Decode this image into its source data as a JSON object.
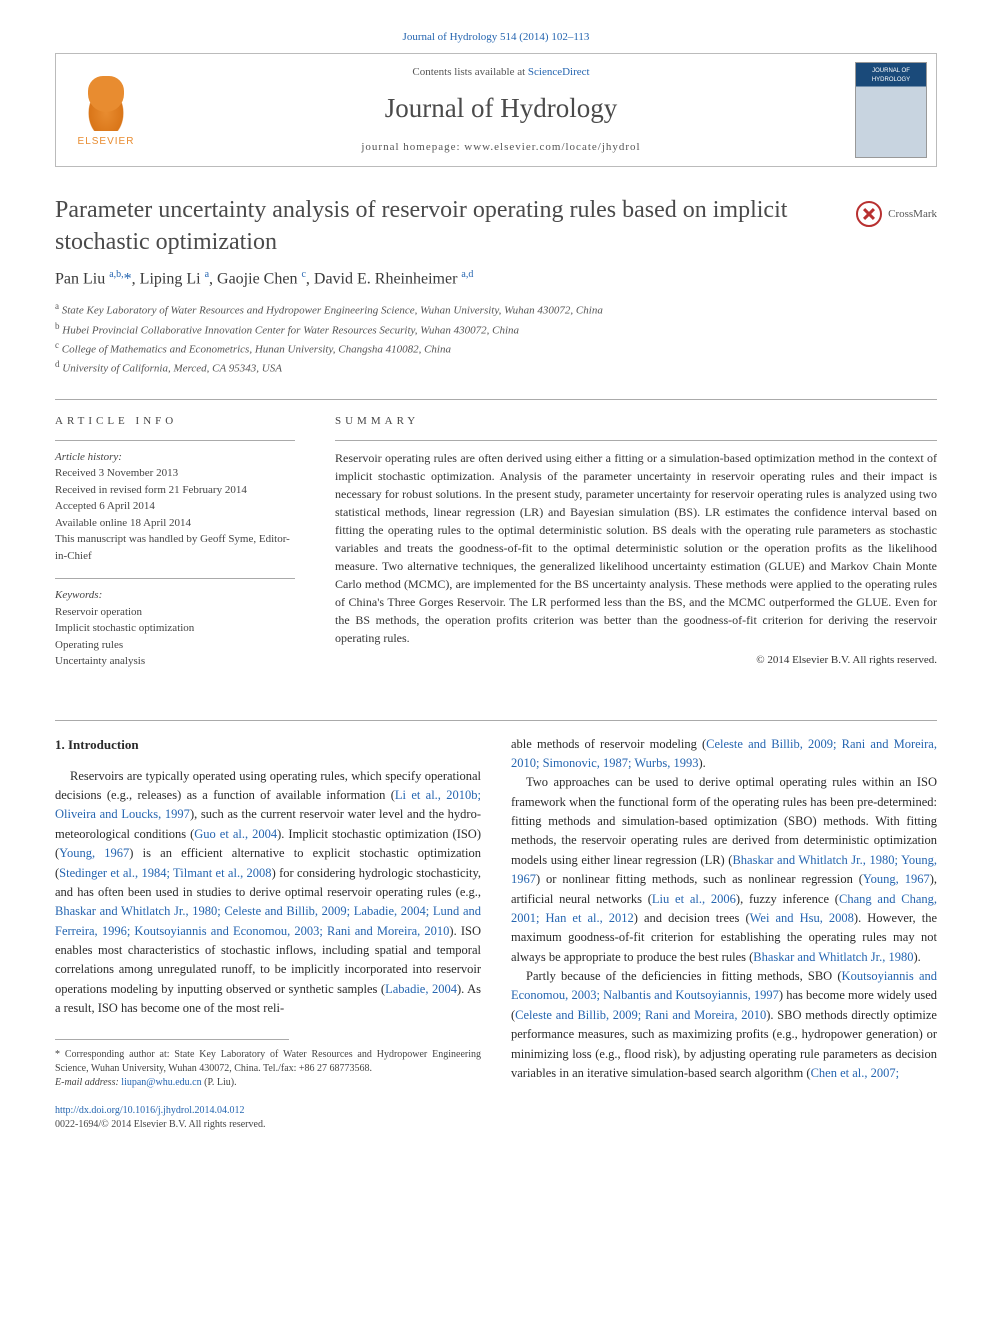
{
  "citation": "Journal of Hydrology 514 (2014) 102–113",
  "header": {
    "contents_prefix": "Contents lists available at ",
    "contents_link": "ScienceDirect",
    "journal": "Journal of Hydrology",
    "homepage_prefix": "journal homepage: ",
    "homepage": "www.elsevier.com/locate/jhydrol",
    "publisher": "ELSEVIER"
  },
  "title": "Parameter uncertainty analysis of reservoir operating rules based on implicit stochastic optimization",
  "crossmark": "CrossMark",
  "authors_html": "Pan Liu <sup>a,b,</sup><span class='star'>*</span>, Liping Li <sup>a</sup>, Gaojie Chen <sup>c</sup>, David E. Rheinheimer <sup>a,d</sup>",
  "affiliations": [
    "a State Key Laboratory of Water Resources and Hydropower Engineering Science, Wuhan University, Wuhan 430072, China",
    "b Hubei Provincial Collaborative Innovation Center for Water Resources Security, Wuhan 430072, China",
    "c College of Mathematics and Econometrics, Hunan University, Changsha 410082, China",
    "d University of California, Merced, CA 95343, USA"
  ],
  "article_info": {
    "label": "ARTICLE INFO",
    "history_title": "Article history:",
    "history": [
      "Received 3 November 2013",
      "Received in revised form 21 February 2014",
      "Accepted 6 April 2014",
      "Available online 18 April 2014",
      "This manuscript was handled by Geoff Syme, Editor-in-Chief"
    ],
    "keywords_title": "Keywords:",
    "keywords": [
      "Reservoir operation",
      "Implicit stochastic optimization",
      "Operating rules",
      "Uncertainty analysis"
    ]
  },
  "summary": {
    "label": "SUMMARY",
    "text": "Reservoir operating rules are often derived using either a fitting or a simulation-based optimization method in the context of implicit stochastic optimization. Analysis of the parameter uncertainty in reservoir operating rules and their impact is necessary for robust solutions. In the present study, parameter uncertainty for reservoir operating rules is analyzed using two statistical methods, linear regression (LR) and Bayesian simulation (BS). LR estimates the confidence interval based on fitting the operating rules to the optimal deterministic solution. BS deals with the operating rule parameters as stochastic variables and treats the goodness-of-fit to the optimal deterministic solution or the operation profits as the likelihood measure. Two alternative techniques, the generalized likelihood uncertainty estimation (GLUE) and Markov Chain Monte Carlo method (MCMC), are implemented for the BS uncertainty analysis. These methods were applied to the operating rules of China's Three Gorges Reservoir. The LR performed less than the BS, and the MCMC outperformed the GLUE. Even for the BS methods, the operation profits criterion was better than the goodness-of-fit criterion for deriving the reservoir operating rules.",
    "copyright": "© 2014 Elsevier B.V. All rights reserved."
  },
  "intro_heading": "1. Introduction",
  "col_left": {
    "p1_a": "Reservoirs are typically operated using operating rules, which specify operational decisions (e.g., releases) as a function of available information (",
    "p1_c1": "Li et al., 2010b; Oliveira and Loucks, 1997",
    "p1_b": "), such as the current reservoir water level and the hydro-meteorological conditions (",
    "p1_c2": "Guo et al., 2004",
    "p1_c": "). Implicit stochastic optimization (ISO) (",
    "p1_c3": "Young, 1967",
    "p1_d": ") is an efficient alternative to explicit stochastic optimization (",
    "p1_c4": "Stedinger et al., 1984; Tilmant et al., 2008",
    "p1_e": ") for considering hydrologic stochasticity, and has often been used in studies to derive optimal reservoir operating rules (e.g., ",
    "p1_c5": "Bhaskar and Whitlatch Jr., 1980; Celeste and Billib, 2009; Labadie, 2004; Lund and Ferreira, 1996; Koutsoyiannis and Economou, 2003; Rani and Moreira, 2010",
    "p1_f": "). ISO enables most characteristics of stochastic inflows, including spatial and temporal correlations among unregulated runoff, to be implicitly incorporated into reservoir operations modeling by inputting observed or synthetic samples (",
    "p1_c6": "Labadie, 2004",
    "p1_g": "). As a result, ISO has become one of the most reli-"
  },
  "col_right": {
    "p1_a": "able methods of reservoir modeling (",
    "p1_c1": "Celeste and Billib, 2009; Rani and Moreira, 2010; Simonovic, 1987; Wurbs, 1993",
    "p1_b": ").",
    "p2_a": "Two approaches can be used to derive optimal operating rules within an ISO framework when the functional form of the operating rules has been pre-determined: fitting methods and simulation-based optimization (SBO) methods. With fitting methods, the reservoir operating rules are derived from deterministic optimization models using either linear regression (LR) (",
    "p2_c1": "Bhaskar and Whitlatch Jr., 1980; Young, 1967",
    "p2_b": ") or nonlinear fitting methods, such as nonlinear regression (",
    "p2_c2": "Young, 1967",
    "p2_c": "), artificial neural networks (",
    "p2_c3": "Liu et al., 2006",
    "p2_d": "), fuzzy inference (",
    "p2_c4": "Chang and Chang, 2001; Han et al., 2012",
    "p2_e": ") and decision trees (",
    "p2_c5": "Wei and Hsu, 2008",
    "p2_f": "). However, the maximum goodness-of-fit criterion for establishing the operating rules may not always be appropriate to produce the best rules (",
    "p2_c6": "Bhaskar and Whitlatch Jr., 1980",
    "p2_g": ").",
    "p3_a": "Partly because of the deficiencies in fitting methods, SBO (",
    "p3_c1": "Koutsoyiannis and Economou, 2003; Nalbantis and Koutsoyiannis, 1997",
    "p3_b": ") has become more widely used (",
    "p3_c2": "Celeste and Billib, 2009; Rani and Moreira, 2010",
    "p3_c": "). SBO methods directly optimize performance measures, such as maximizing profits (e.g., hydropower generation) or minimizing loss (e.g., flood risk), by adjusting operating rule parameters as decision variables in an iterative simulation-based search algorithm (",
    "p3_c3": "Chen et al., 2007;",
    "p3_d": ""
  },
  "footnote": {
    "corresponding": "* Corresponding author at: State Key Laboratory of Water Resources and Hydropower Engineering Science, Wuhan University, Wuhan 430072, China. Tel./fax: +86 27 68773568.",
    "email_label": "E-mail address: ",
    "email": "liupan@whu.edu.cn",
    "email_suffix": " (P. Liu)."
  },
  "doi": {
    "url": "http://dx.doi.org/10.1016/j.jhydrol.2014.04.012",
    "issn_line": "0022-1694/© 2014 Elsevier B.V. All rights reserved."
  }
}
